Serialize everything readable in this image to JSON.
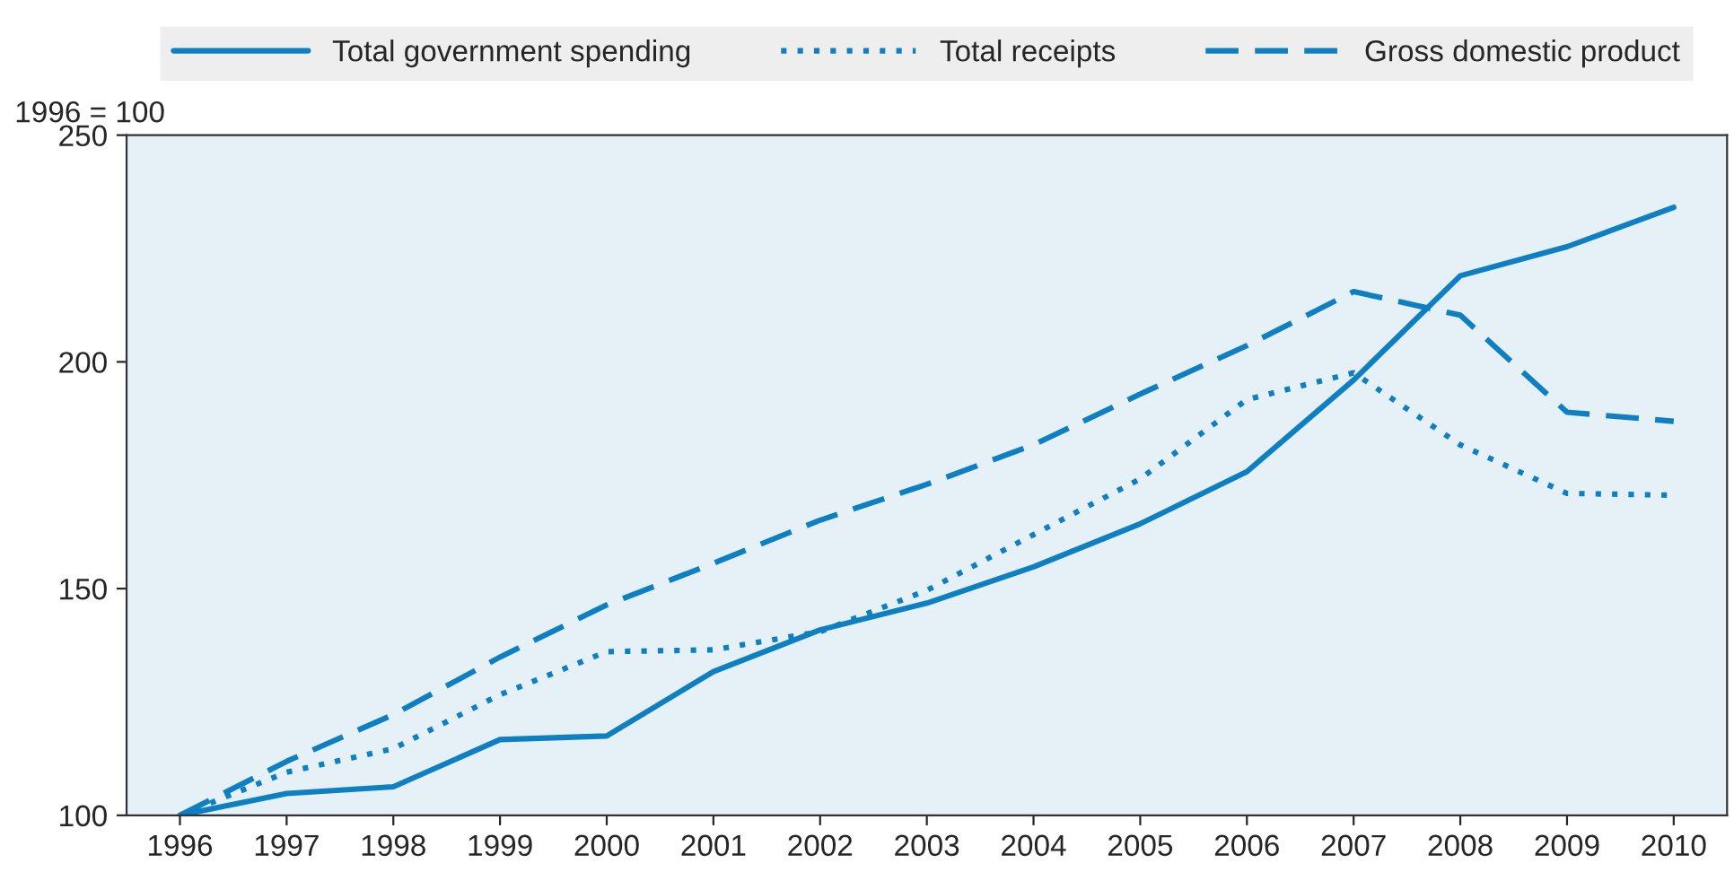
{
  "chart_data": {
    "type": "line",
    "ylabel": "1996 = 100",
    "categories": [
      "1996",
      "1997",
      "1998",
      "1999",
      "2000",
      "2001",
      "2002",
      "2003",
      "2004",
      "2005",
      "2006",
      "2007",
      "2008",
      "2009",
      "2010"
    ],
    "series": [
      {
        "name": "Total government spending",
        "color": "#0e7fc0",
        "line_style": "solid",
        "values": [
          100,
          104.8,
          106.3,
          116.7,
          117.5,
          131.7,
          140.9,
          146.8,
          154.8,
          164.3,
          175.8,
          196,
          219,
          225.4,
          234.1
        ]
      },
      {
        "name": "Total receipts",
        "color": "#0e7fc0",
        "line_style": "dotted",
        "values": [
          100,
          109.5,
          114.7,
          126.6,
          136.1,
          136.5,
          140.5,
          149.6,
          161.9,
          174.2,
          191.7,
          197.6,
          181.7,
          171,
          170.6
        ]
      },
      {
        "name": "Gross domestic product",
        "color": "#0e7fc0",
        "line_style": "dashed",
        "values": [
          100,
          111.9,
          122.2,
          134.9,
          146.4,
          155.6,
          165.1,
          173,
          181.7,
          192.9,
          203.6,
          215.5,
          210.3,
          188.9,
          186.9
        ]
      }
    ],
    "ylim": [
      100,
      250
    ],
    "yticks": [
      100,
      150,
      200,
      250
    ],
    "grid": false,
    "legend": "top",
    "marker": "none"
  }
}
